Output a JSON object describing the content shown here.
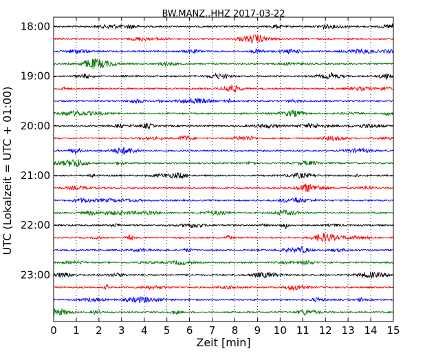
{
  "chart_data": {
    "type": "line",
    "title": "BW.MANZ..HHZ 2017-03-22",
    "xlabel": "Zeit  [min]",
    "ylabel": "UTC (Lokalzeit = UTC + 01:00)",
    "xlim": [
      0,
      15
    ],
    "x_ticks": [
      "0",
      "1",
      "2",
      "3",
      "4",
      "5",
      "6",
      "7",
      "8",
      "9",
      "10",
      "11",
      "12",
      "13",
      "14",
      "15"
    ],
    "y_tick_labels": [
      "18:00",
      "19:00",
      "20:00",
      "21:00",
      "22:00",
      "23:00"
    ],
    "grid": "vertical-dotted",
    "trace_colors": [
      "#000000",
      "#ff0000",
      "#0000ff",
      "#007700"
    ],
    "traces": [
      {
        "start": "18:00",
        "color": "#000000"
      },
      {
        "start": "18:15",
        "color": "#ff0000"
      },
      {
        "start": "18:30",
        "color": "#0000ff"
      },
      {
        "start": "18:45",
        "color": "#007700"
      },
      {
        "start": "19:00",
        "color": "#000000"
      },
      {
        "start": "19:15",
        "color": "#ff0000"
      },
      {
        "start": "19:30",
        "color": "#0000ff"
      },
      {
        "start": "19:45",
        "color": "#007700"
      },
      {
        "start": "20:00",
        "color": "#000000"
      },
      {
        "start": "20:15",
        "color": "#ff0000"
      },
      {
        "start": "20:30",
        "color": "#0000ff"
      },
      {
        "start": "20:45",
        "color": "#007700"
      },
      {
        "start": "21:00",
        "color": "#000000"
      },
      {
        "start": "21:15",
        "color": "#ff0000"
      },
      {
        "start": "21:30",
        "color": "#0000ff"
      },
      {
        "start": "21:45",
        "color": "#007700"
      },
      {
        "start": "22:00",
        "color": "#000000"
      },
      {
        "start": "22:15",
        "color": "#ff0000"
      },
      {
        "start": "22:30",
        "color": "#0000ff"
      },
      {
        "start": "22:45",
        "color": "#007700"
      },
      {
        "start": "23:00",
        "color": "#000000"
      },
      {
        "start": "23:15",
        "color": "#ff0000"
      },
      {
        "start": "23:30",
        "color": "#0000ff"
      },
      {
        "start": "23:45",
        "color": "#007700"
      }
    ]
  }
}
